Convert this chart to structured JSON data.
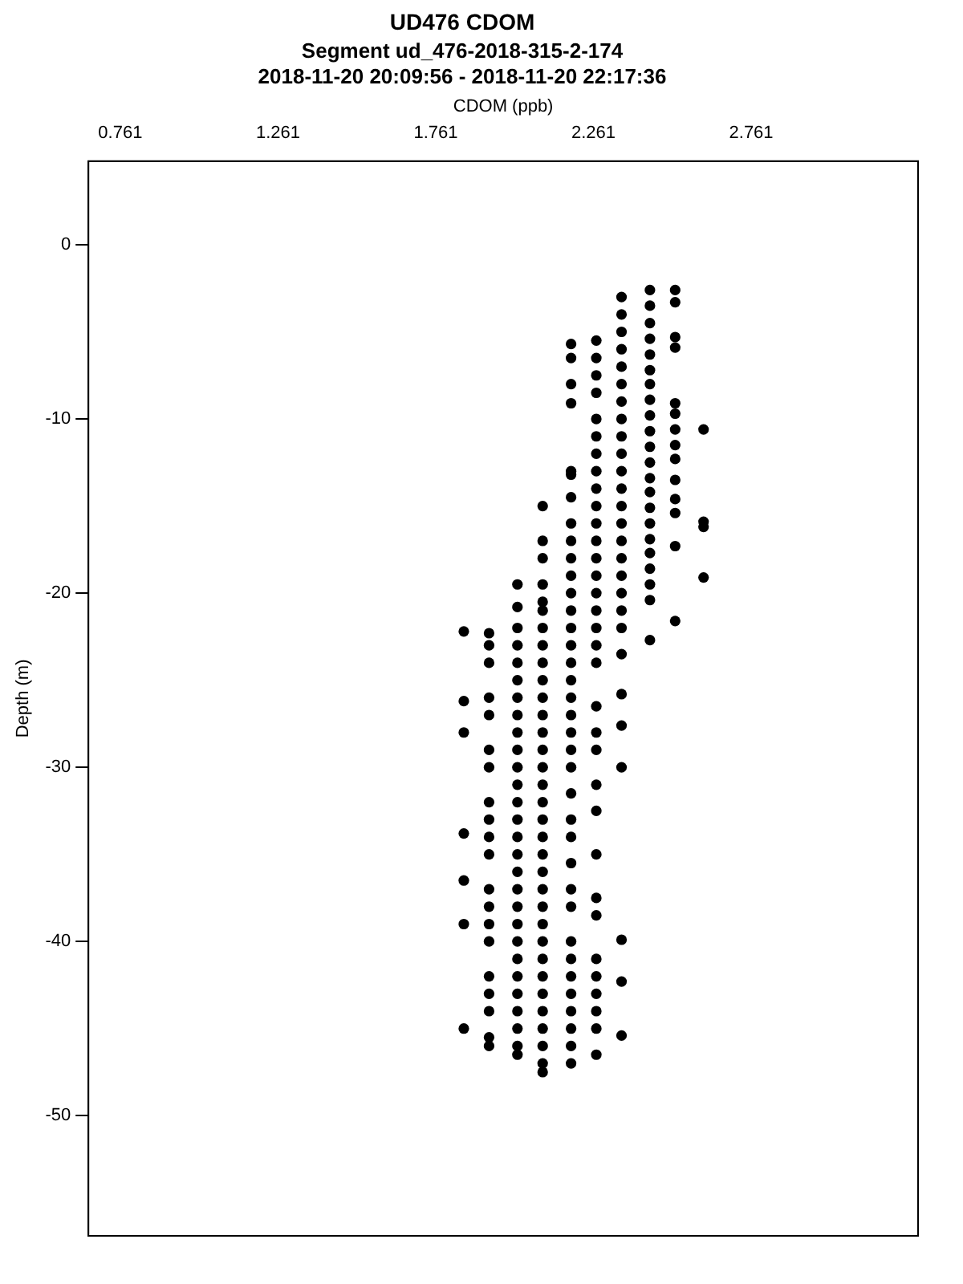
{
  "chart_data": {
    "type": "scatter",
    "title": "UD476 CDOM",
    "subtitle": "Segment ud_476-2018-315-2-174",
    "annotations": [
      "2018-11-20 20:09:56 - 2018-11-20 22:17:36"
    ],
    "xlabel": "CDOM (ppb)",
    "ylabel": "Depth (m)",
    "xlim": [
      0.66,
      3.29
    ],
    "xticks": [
      0.761,
      1.261,
      1.761,
      2.261,
      2.761
    ],
    "ylim": [
      -56.9,
      4.8
    ],
    "yticks": [
      -50,
      -40,
      -30,
      -20,
      -10,
      0
    ],
    "grid": false,
    "legend": false,
    "marker": "circle",
    "series": [
      {
        "color": "#000000",
        "x": [
          2.61,
          2.61,
          2.61,
          2.61,
          2.52,
          2.52,
          2.52,
          2.52,
          2.52,
          2.52,
          2.52,
          2.52,
          2.52,
          2.52,
          2.52,
          2.52,
          2.52,
          2.52,
          2.44,
          2.44,
          2.44,
          2.44,
          2.44,
          2.44,
          2.44,
          2.44,
          2.44,
          2.44,
          2.44,
          2.44,
          2.44,
          2.44,
          2.44,
          2.44,
          2.44,
          2.44,
          2.44,
          2.44,
          2.44,
          2.44,
          2.35,
          2.35,
          2.35,
          2.35,
          2.35,
          2.35,
          2.35,
          2.35,
          2.35,
          2.35,
          2.35,
          2.35,
          2.35,
          2.35,
          2.35,
          2.35,
          2.35,
          2.35,
          2.35,
          2.35,
          2.35,
          2.35,
          2.35,
          2.35,
          2.35,
          2.35,
          2.35,
          2.27,
          2.27,
          2.27,
          2.27,
          2.27,
          2.27,
          2.27,
          2.27,
          2.27,
          2.27,
          2.27,
          2.27,
          2.27,
          2.27,
          2.27,
          2.27,
          2.27,
          2.27,
          2.27,
          2.27,
          2.27,
          2.27,
          2.27,
          2.27,
          2.27,
          2.27,
          2.27,
          2.27,
          2.27,
          2.27,
          2.27,
          2.27,
          2.27,
          2.19,
          2.19,
          2.19,
          2.19,
          2.19,
          2.19,
          2.19,
          2.19,
          2.19,
          2.19,
          2.19,
          2.19,
          2.19,
          2.19,
          2.19,
          2.19,
          2.19,
          2.19,
          2.19,
          2.19,
          2.19,
          2.19,
          2.19,
          2.19,
          2.19,
          2.19,
          2.19,
          2.19,
          2.19,
          2.19,
          2.19,
          2.19,
          2.19,
          2.19,
          2.19,
          2.19,
          2.1,
          2.1,
          2.1,
          2.1,
          2.1,
          2.1,
          2.1,
          2.1,
          2.1,
          2.1,
          2.1,
          2.1,
          2.1,
          2.1,
          2.1,
          2.1,
          2.1,
          2.1,
          2.1,
          2.1,
          2.1,
          2.1,
          2.1,
          2.1,
          2.1,
          2.1,
          2.1,
          2.1,
          2.1,
          2.1,
          2.1,
          2.1,
          2.1,
          2.02,
          2.02,
          2.02,
          2.02,
          2.02,
          2.02,
          2.02,
          2.02,
          2.02,
          2.02,
          2.02,
          2.02,
          2.02,
          2.02,
          2.02,
          2.02,
          2.02,
          2.02,
          2.02,
          2.02,
          2.02,
          2.02,
          2.02,
          2.02,
          2.02,
          2.02,
          2.02,
          2.02,
          1.93,
          1.93,
          1.93,
          1.93,
          1.93,
          1.93,
          1.93,
          1.93,
          1.93,
          1.93,
          1.93,
          1.93,
          1.93,
          1.93,
          1.93,
          1.93,
          1.93,
          1.93,
          1.93,
          1.93,
          1.85,
          1.85,
          1.85,
          1.85,
          1.85,
          1.85,
          1.85
        ],
        "values": [
          -10.6,
          -15.9,
          -16.2,
          -19.1,
          -2.6,
          -3.3,
          -5.3,
          -5.9,
          -9.1,
          -9.7,
          -10.6,
          -11.5,
          -12.3,
          -13.5,
          -14.6,
          -15.4,
          -17.3,
          -21.6,
          -2.6,
          -3.5,
          -4.5,
          -5.4,
          -6.3,
          -7.2,
          -8,
          -8.9,
          -9.8,
          -10.7,
          -11.6,
          -12.5,
          -13.4,
          -14.2,
          -15.1,
          -16,
          -16.9,
          -17.7,
          -18.6,
          -19.5,
          -20.4,
          -22.7,
          -3,
          -4,
          -5,
          -6,
          -7,
          -8,
          -9,
          -10,
          -11,
          -12,
          -13,
          -14,
          -15,
          -16,
          -17,
          -18,
          -19,
          -20,
          -21,
          -22,
          -23.5,
          -25.8,
          -27.6,
          -30,
          -39.9,
          -42.3,
          -45.4,
          -5.5,
          -6.5,
          -7.5,
          -8.5,
          -10,
          -11,
          -12,
          -13,
          -14,
          -15,
          -16,
          -17,
          -18,
          -19,
          -20,
          -21,
          -22,
          -23,
          -24,
          -26.5,
          -28,
          -29,
          -31,
          -32.5,
          -35,
          -37.5,
          -38.5,
          -41,
          -42,
          -43,
          -44,
          -45,
          -46.5,
          -5.7,
          -6.5,
          -8,
          -9.1,
          -13,
          -14.5,
          -16,
          -17,
          -18,
          -19,
          -20,
          -21,
          -22,
          -23,
          -24,
          -25,
          -26,
          -27,
          -28,
          -29,
          -30,
          -31.5,
          -33,
          -34,
          -35.5,
          -37,
          -38,
          -40,
          -41,
          -42,
          -43,
          -44,
          -45,
          -46,
          -47,
          -13.2,
          -17,
          -18,
          -19.5,
          -21,
          -22,
          -23,
          -24,
          -25,
          -26,
          -27,
          -28,
          -29,
          -30,
          -31,
          -32,
          -33,
          -34,
          -35,
          -36,
          -37,
          -38,
          -39,
          -40,
          -41,
          -42,
          -43,
          -44,
          -45,
          -46,
          -47,
          -47.5,
          -20.5,
          -15,
          -19.5,
          -20.8,
          -22,
          -23,
          -24,
          -25,
          -26,
          -27,
          -28,
          -29,
          -30,
          -31,
          -32,
          -33,
          -34,
          -35,
          -36,
          -37,
          -38,
          -39,
          -40,
          -41,
          -42,
          -43,
          -44,
          -45,
          -46,
          -46.5,
          -22.3,
          -23,
          -24,
          -26,
          -27,
          -29,
          -30,
          -32,
          -33,
          -34,
          -35,
          -37,
          -38,
          -39,
          -40,
          -42,
          -43,
          -44,
          -45.5,
          -46,
          -22.2,
          -26.2,
          -28,
          -33.8,
          -36.5,
          -39,
          -45
        ]
      }
    ]
  }
}
